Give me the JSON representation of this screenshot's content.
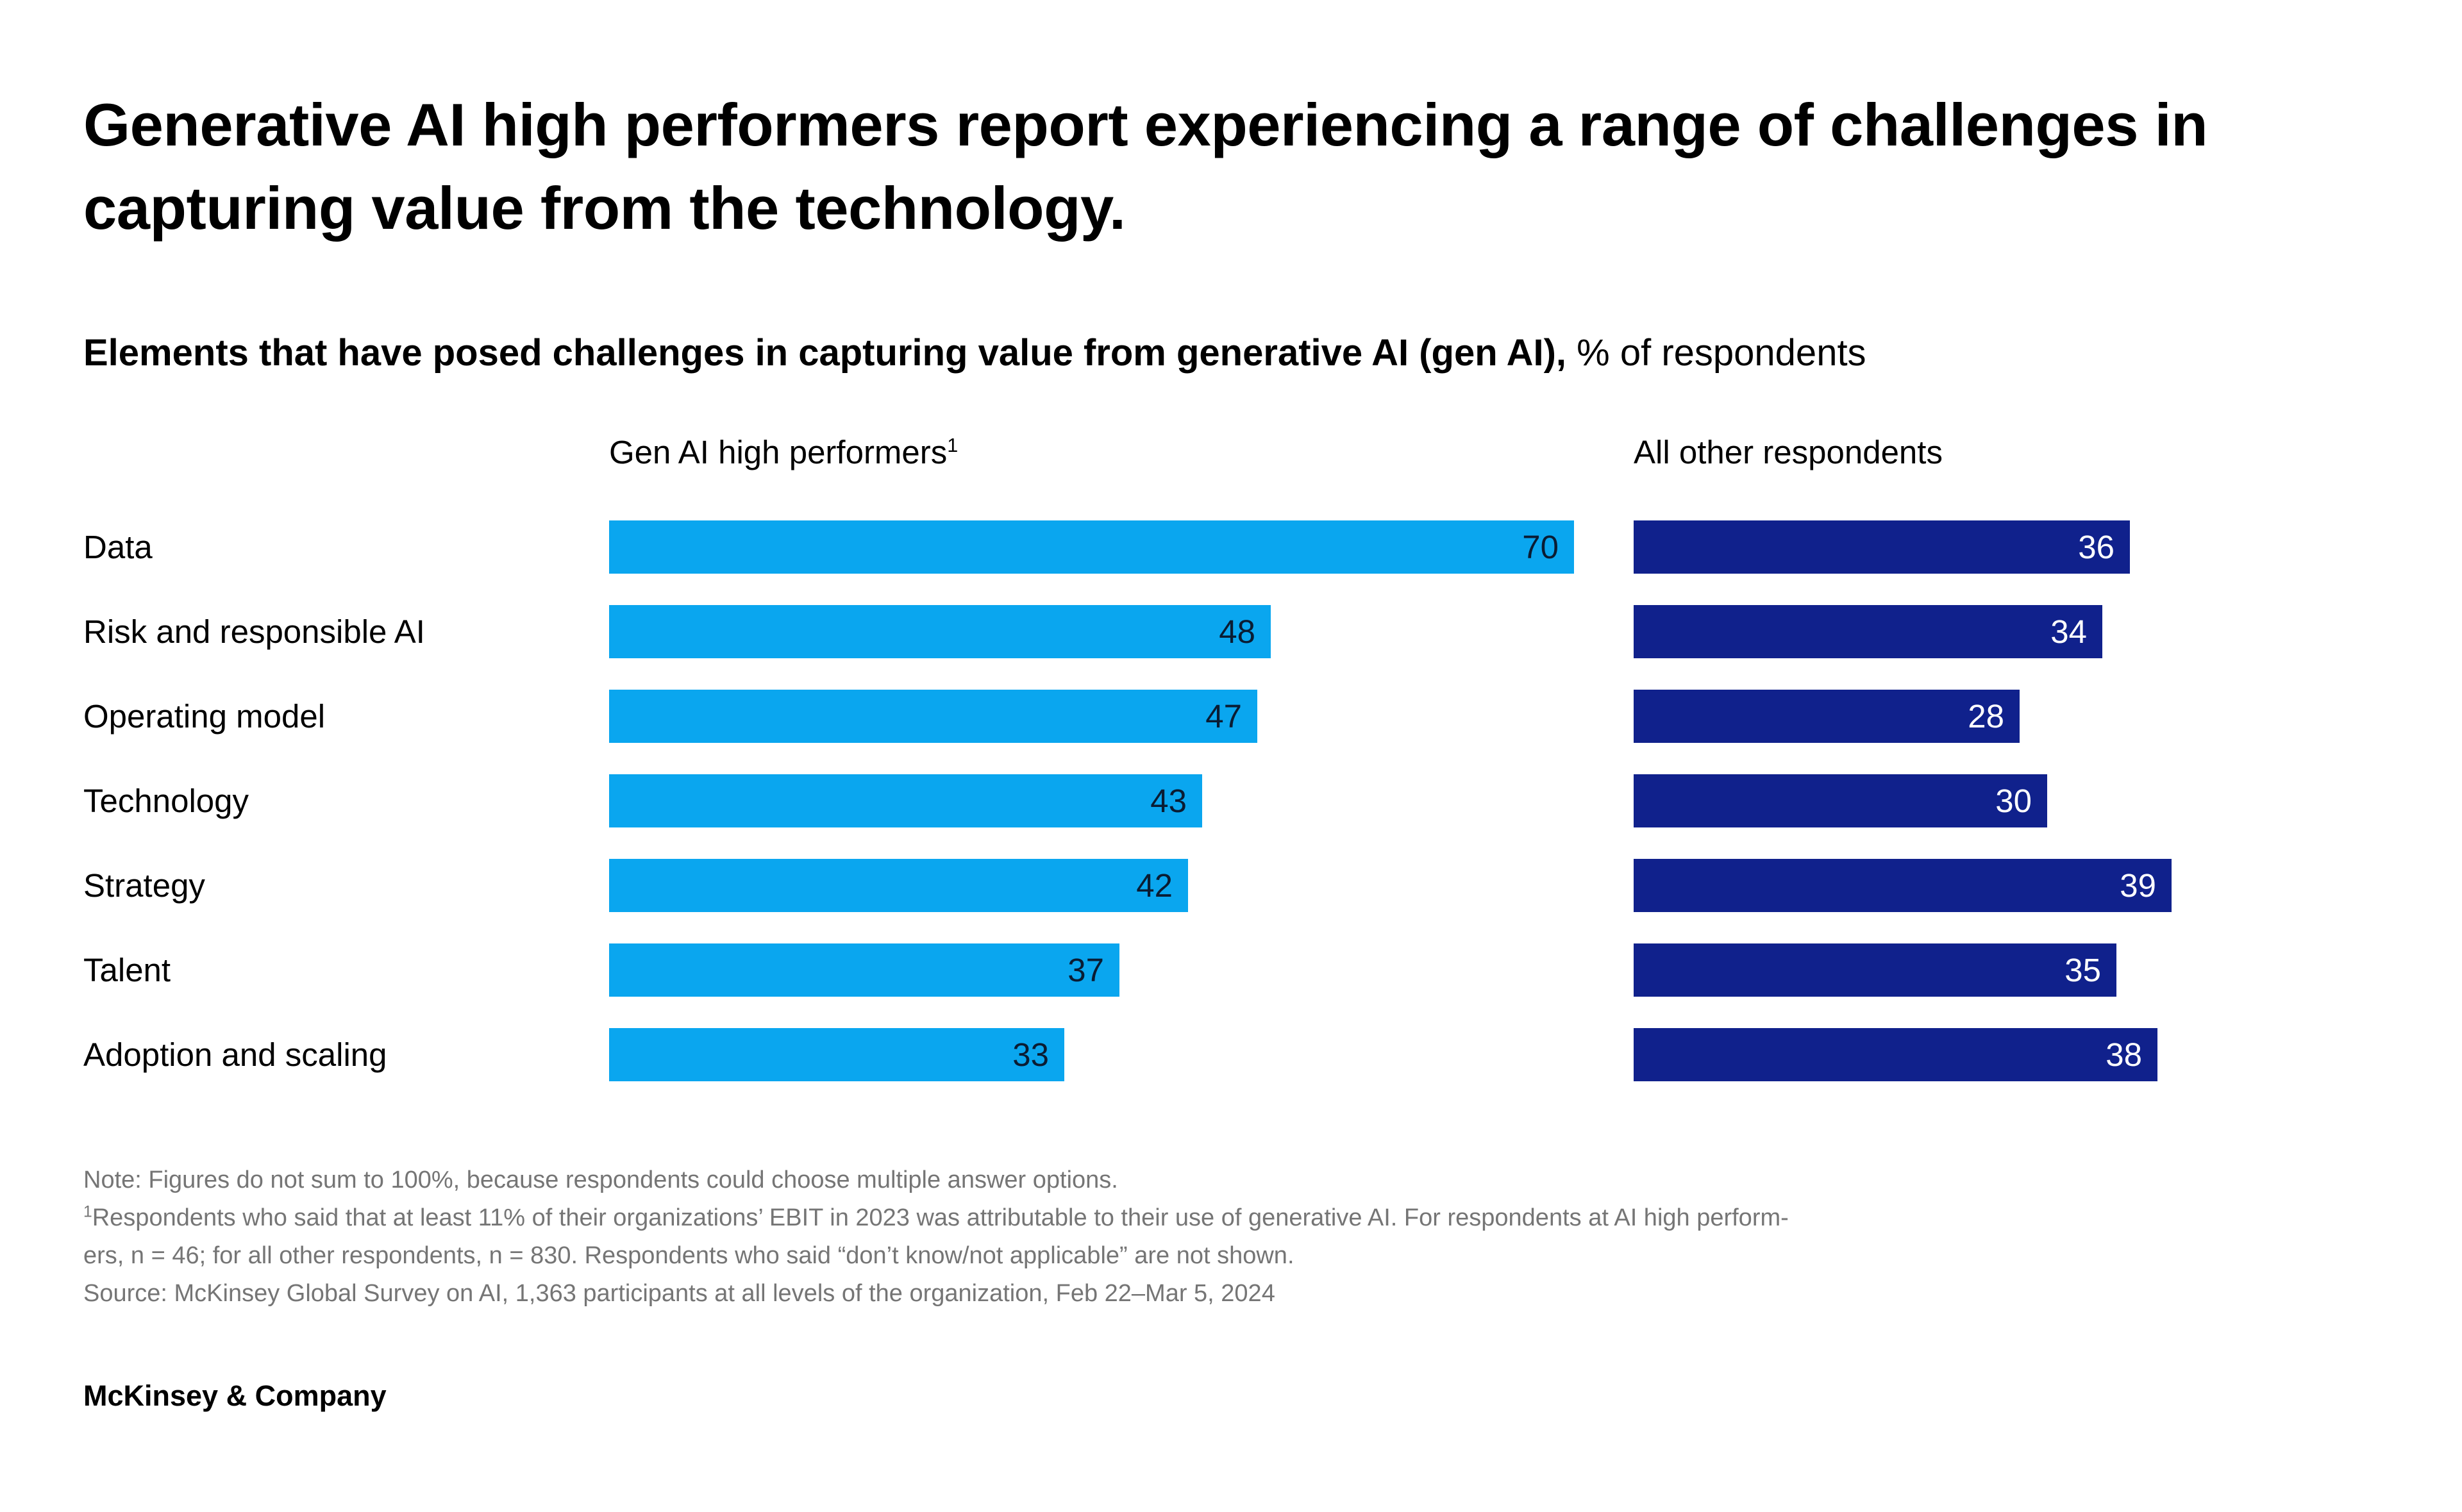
{
  "title": "Generative AI high performers report experiencing a range of challenges in capturing value from the technology.",
  "subtitle": {
    "bold": "Elements that have posed challenges in capturing value from generative AI (gen AI),",
    "regular": " % of respondents"
  },
  "chart_data": {
    "type": "bar",
    "orientation": "horizontal",
    "title": "Elements that have posed challenges in capturing value from generative AI (gen AI)",
    "unit": "% of respondents",
    "categories": [
      "Data",
      "Risk and responsible AI",
      "Operating model",
      "Technology",
      "Strategy",
      "Talent",
      "Adoption and scaling"
    ],
    "series": [
      {
        "name": "Gen AI high performers",
        "name_sup": "1",
        "values": [
          70,
          48,
          47,
          43,
          42,
          37,
          33
        ],
        "color": "#0aa6ef"
      },
      {
        "name": "All other respondents",
        "name_sup": "",
        "values": [
          36,
          34,
          28,
          30,
          39,
          35,
          38
        ],
        "color": "#10218c"
      }
    ],
    "value_labels_shown": true,
    "xlim": [
      0,
      74
    ],
    "grid": false,
    "legend_position": "column-headers"
  },
  "colors": {
    "high_performers_bar": "#0aa6ef",
    "other_respondents_bar": "#10218c",
    "value_text_on_light": "#0a1c33",
    "value_text_on_dark": "#ffffff",
    "footnote_text": "#757575"
  },
  "footnotes": [
    "Note: Figures do not sum to 100%, because respondents could choose multiple answer options.",
    "Respondents who said that at least 11% of their organizations’ EBIT in 2023 was attributable to their use of generative AI. For respondents at AI high perform-",
    "ers, n = 46; for all other respondents, n = 830. Respondents who said “don’t know/not applicable” are not shown.",
    "Source: McKinsey Global Survey on AI, 1,363 participants at all levels of the organization, Feb 22–Mar 5, 2024"
  ],
  "footnote_sup": "1",
  "logo": "McKinsey & Company"
}
